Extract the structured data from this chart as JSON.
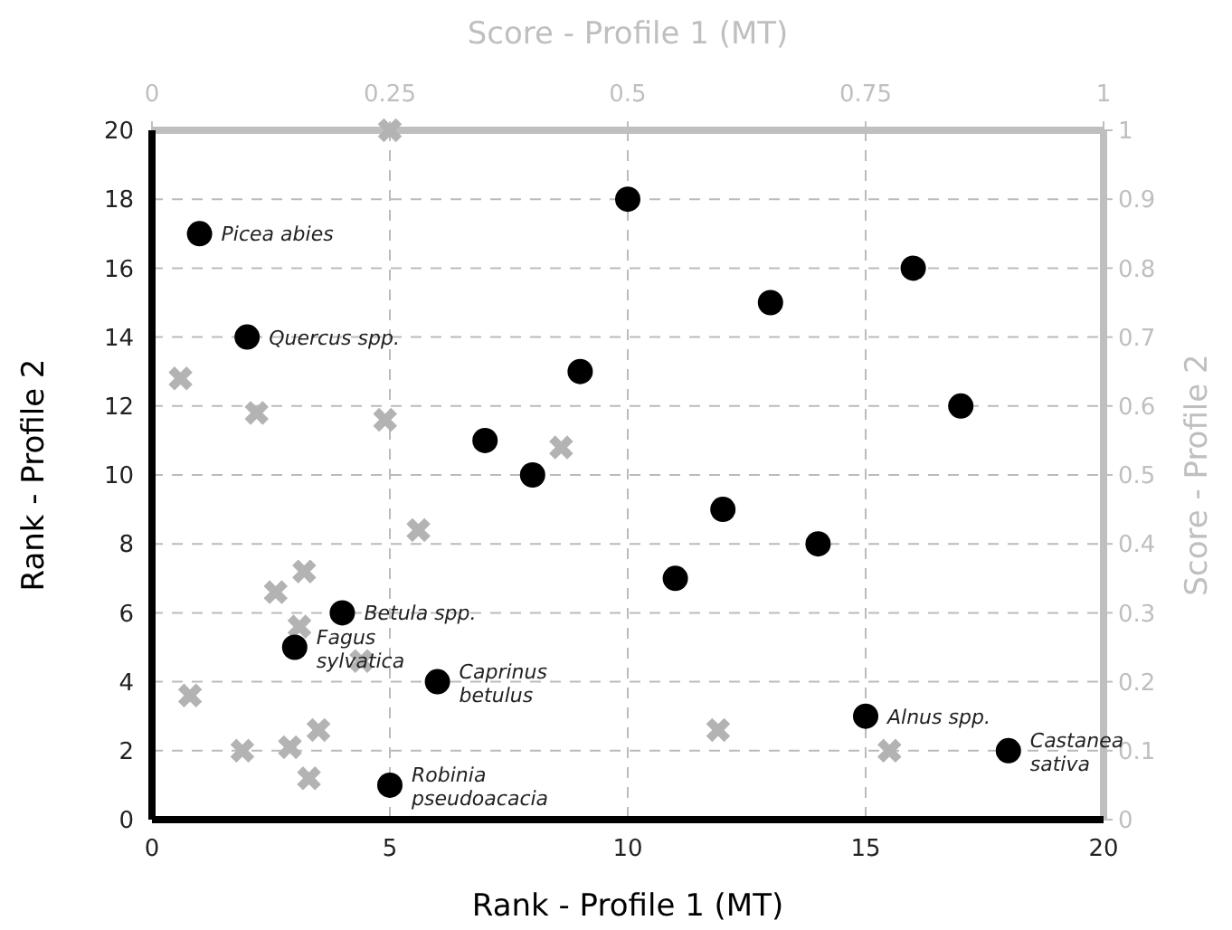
{
  "chart_data": {
    "type": "scatter",
    "xlabel": "Rank - Profile 1 (MT)",
    "ylabel": "Rank - Profile 2",
    "x2label": "Score - Profile 1 (MT)",
    "y2label": "Score - Profile 2",
    "xlim": [
      0,
      20
    ],
    "xticks": [
      0,
      5,
      10,
      15,
      20
    ],
    "ylim": [
      0,
      20
    ],
    "yticks": [
      0,
      2,
      4,
      6,
      8,
      10,
      12,
      14,
      16,
      18,
      20
    ],
    "x2lim": [
      0,
      1
    ],
    "x2ticks": [
      0,
      0.25,
      0.5,
      0.75,
      1
    ],
    "y2lim": [
      0,
      1
    ],
    "y2ticks": [
      0,
      0.1,
      0.2,
      0.3,
      0.4,
      0.5,
      0.6,
      0.7,
      0.8,
      0.9,
      1
    ],
    "grid": true,
    "series": [
      {
        "color": "#000000",
        "marker": "circle",
        "x": [
          1,
          2,
          3,
          4,
          5,
          6,
          7,
          8,
          9,
          10,
          11,
          12,
          13,
          14,
          15,
          16,
          17,
          18
        ],
        "values": [
          17,
          14,
          5,
          6,
          1,
          4,
          11,
          10,
          13,
          18,
          7,
          9,
          15,
          8,
          3,
          16,
          12,
          2
        ]
      },
      {
        "color": "#b3b3b3",
        "marker": "cross",
        "axis": "y2",
        "x": [
          5,
          0.6,
          2.2,
          4.9,
          8.6,
          5.6,
          3.2,
          2.6,
          3.1,
          4.4,
          0.8,
          3.5,
          2.9,
          1.9,
          3.3,
          11.9,
          15.5
        ],
        "values": [
          1.0,
          0.64,
          0.59,
          0.58,
          0.54,
          0.42,
          0.36,
          0.33,
          0.28,
          0.23,
          0.18,
          0.13,
          0.105,
          0.1,
          0.06,
          0.13,
          0.1
        ]
      }
    ],
    "annotations": [
      {
        "text": "Picea abies",
        "x": 1,
        "y": 17
      },
      {
        "text": "Quercus spp.",
        "x": 2,
        "y": 14
      },
      {
        "text": "Betula spp.",
        "x": 4,
        "y": 6
      },
      {
        "text": "Fagus\nsylvatica",
        "x": 3,
        "y": 5
      },
      {
        "text": "Caprinus\nbetulus",
        "x": 6,
        "y": 4
      },
      {
        "text": "Robinia\npseudoacacia",
        "x": 5,
        "y": 1
      },
      {
        "text": "Alnus spp.",
        "x": 15,
        "y": 3
      },
      {
        "text": "Castanea\nsativa",
        "x": 18,
        "y": 2
      }
    ]
  }
}
